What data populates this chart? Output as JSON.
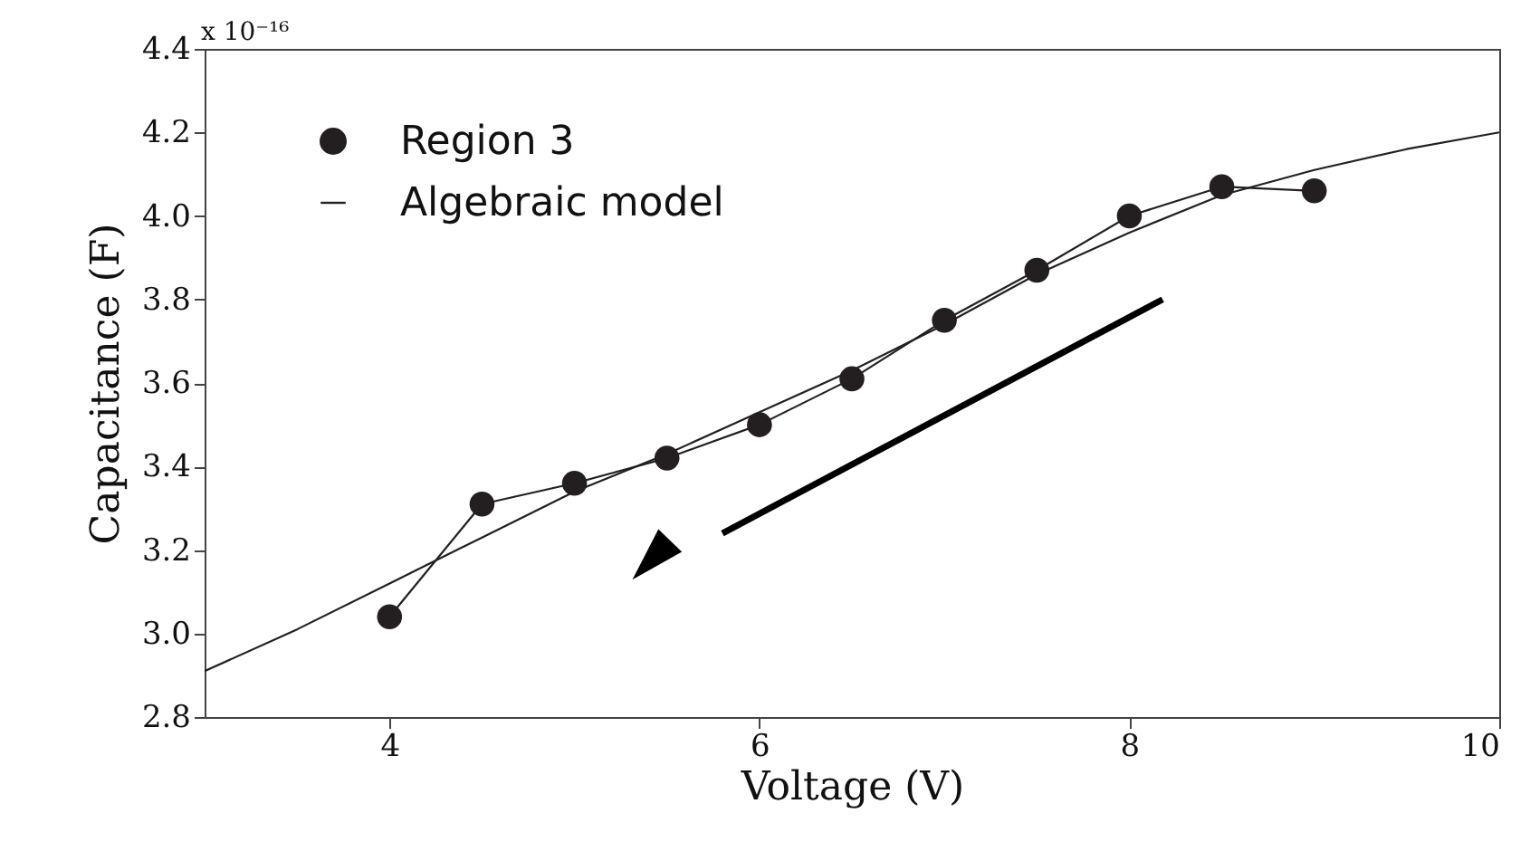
{
  "chart_data": {
    "type": "line",
    "xlabel": "Voltage (V)",
    "ylabel": "Capacitance (F)",
    "annotations": [
      "x 10⁻¹⁶"
    ],
    "x": [
      4,
      4.5,
      5,
      5.5,
      6,
      6.5,
      7,
      7.5,
      8,
      8.5,
      9
    ],
    "series": [
      {
        "name": "Region 3",
        "color": "#231f20",
        "marker": "circle",
        "values": [
          3.04,
          3.31,
          3.36,
          3.42,
          3.5,
          3.61,
          3.75,
          3.87,
          4.0,
          4.07,
          4.06
        ]
      },
      {
        "name": "Algebraic model",
        "color": "#231f20",
        "marker": "none",
        "x": [
          3,
          3.5,
          4,
          4.5,
          5,
          5.5,
          6,
          6.5,
          7,
          7.5,
          8,
          8.5,
          9,
          9.5,
          10
        ],
        "values": [
          2.91,
          3.01,
          3.12,
          3.23,
          3.34,
          3.43,
          3.53,
          3.63,
          3.74,
          3.86,
          3.96,
          4.05,
          4.11,
          4.16,
          4.2
        ]
      }
    ],
    "xlim": [
      3,
      10
    ],
    "xticks": [
      4,
      6,
      8,
      10
    ],
    "ylim": [
      2.8,
      4.4
    ],
    "yticks": [
      2.8,
      {
        "value": 3,
        "label": "3.0"
      },
      3.2,
      3.4,
      3.6,
      3.8,
      {
        "value": 4,
        "label": "4.0"
      },
      4.2,
      4.4
    ],
    "grid": false,
    "legend": "top left",
    "line_style": "solid"
  }
}
